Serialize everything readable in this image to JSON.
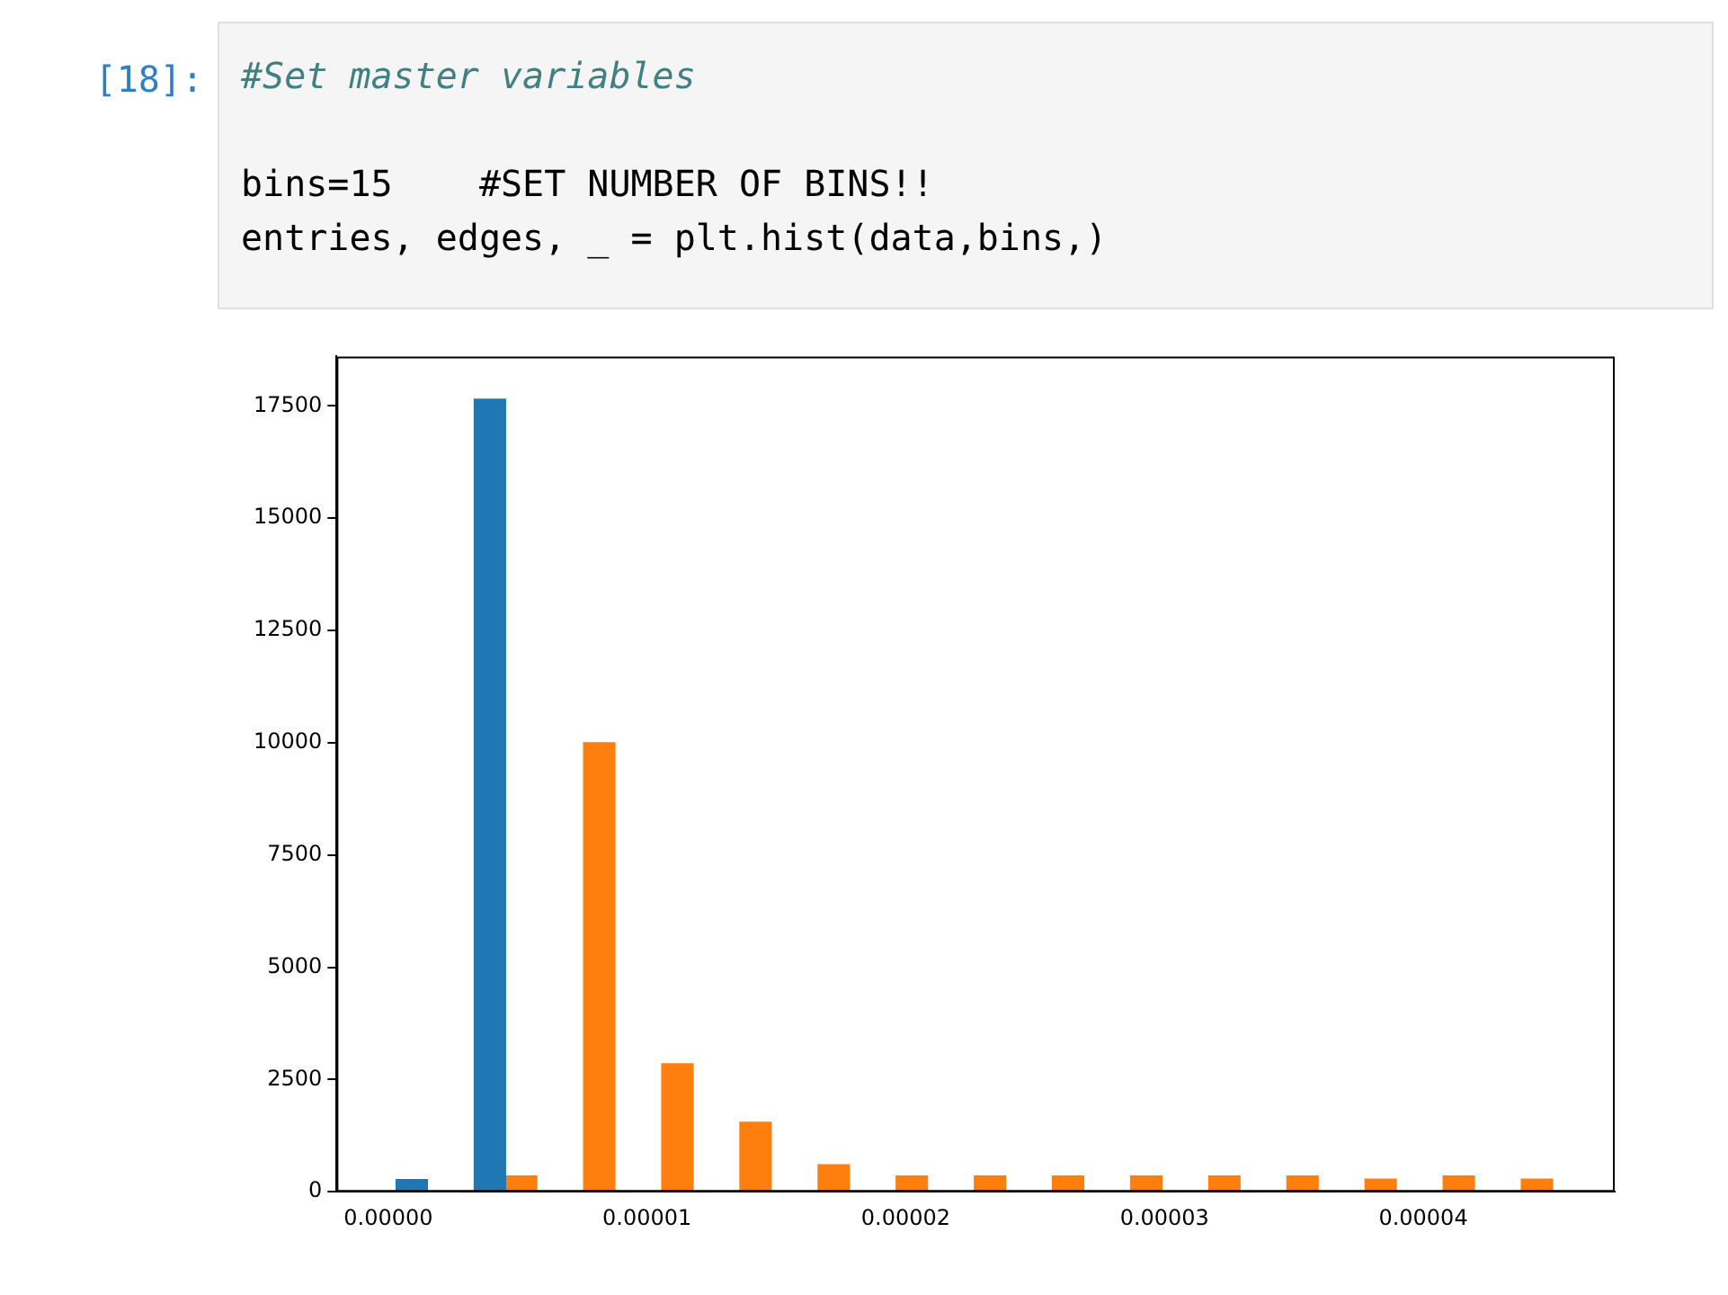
{
  "chart_data": {
    "type": "histogram",
    "annotations": [
      "[18]:",
      "#Set master variables",
      "bins=15    #SET NUMBER OF BINS!!",
      "entries, edges, _ = plt.hist(data,bins,)"
    ],
    "bins": [
      0,
      3.02e-06,
      6.04e-06,
      9.06e-06,
      1.208e-05,
      1.51e-05,
      1.812e-05,
      2.114e-05,
      2.416e-05,
      2.718e-05,
      3.02e-05,
      3.322e-05,
      3.624e-05,
      3.926e-05,
      4.228e-05,
      4.53e-05
    ],
    "series": [
      {
        "color": "#1f77b4",
        "values": [
          270,
          17650,
          0,
          0,
          0,
          0,
          0,
          0,
          0,
          0,
          0,
          0,
          0,
          0,
          0
        ]
      },
      {
        "color": "#ff7f0e",
        "values": [
          0,
          350,
          10000,
          2850,
          1550,
          600,
          350,
          350,
          350,
          350,
          350,
          350,
          280,
          350,
          280
        ]
      }
    ],
    "xlim": [
      -2e-06,
      4.74e-05
    ],
    "xticks": [
      {
        "value": 0,
        "label": "0.00000"
      },
      {
        "value": 1e-05,
        "label": "0.00001"
      },
      {
        "value": 2e-05,
        "label": "0.00002"
      },
      {
        "value": 3e-05,
        "label": "0.00003"
      },
      {
        "value": 4e-05,
        "label": "0.00004"
      }
    ],
    "ylim": [
      0,
      18600
    ],
    "yticks": [
      0,
      2500,
      5000,
      7500,
      10000,
      12500,
      15000,
      17500
    ],
    "grid": false,
    "legend": false
  }
}
